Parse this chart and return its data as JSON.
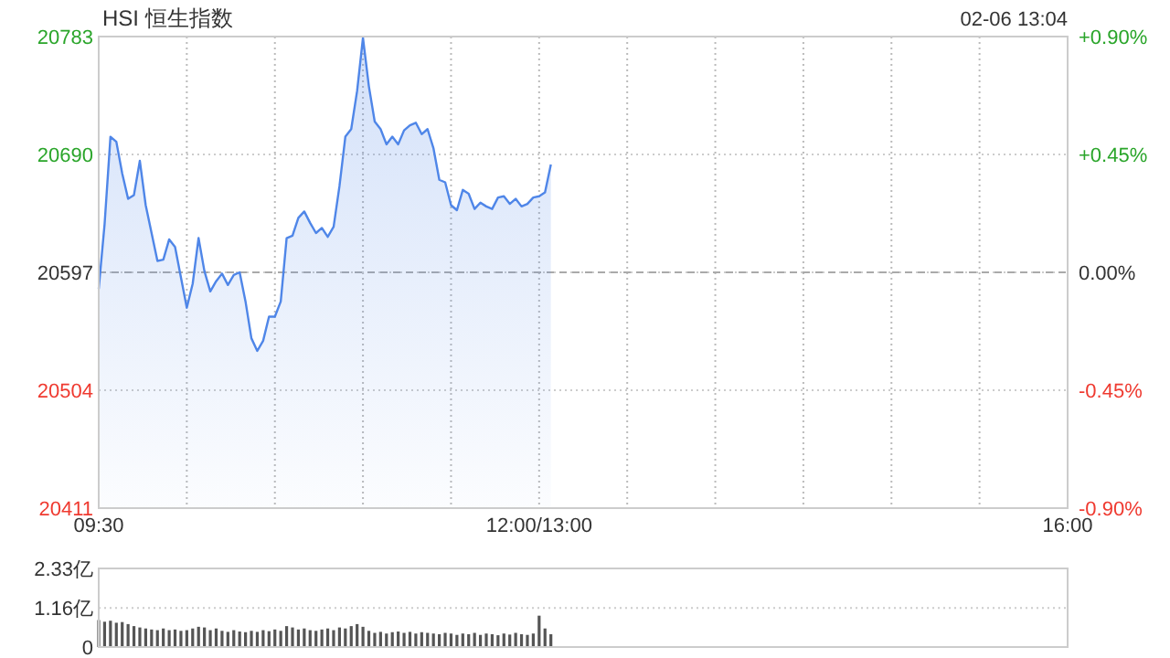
{
  "chart_data": [
    {
      "type": "area",
      "title": "HSI 恒生指数",
      "annotations": [
        "02-06 13:04"
      ],
      "categories": [
        "09:30",
        null,
        null,
        null,
        null,
        null,
        null,
        null,
        null,
        null,
        null,
        null,
        null,
        null,
        null,
        null,
        null,
        null,
        null,
        null,
        null,
        null,
        null,
        null,
        null,
        null,
        null,
        null,
        null,
        null,
        null,
        null,
        null,
        null,
        null,
        null,
        null,
        null,
        null,
        null,
        null,
        null,
        null,
        null,
        null,
        null,
        null,
        null,
        null,
        null,
        null,
        null,
        null,
        null,
        null,
        null,
        null,
        null,
        null,
        null,
        null,
        null,
        null,
        null,
        null,
        null,
        null,
        null,
        null,
        null,
        null,
        null,
        null,
        null,
        null,
        "12:00/13:00",
        null,
        null,
        null,
        null,
        null,
        null,
        null,
        null,
        null,
        null,
        null,
        null,
        null,
        null,
        null,
        null,
        null,
        null,
        null,
        null,
        null,
        null,
        null,
        null,
        null,
        null,
        null,
        null,
        null,
        null,
        null,
        null,
        null,
        null,
        null,
        null,
        null,
        null,
        null,
        null,
        null,
        null,
        null,
        null,
        null,
        null,
        null,
        null,
        null,
        null,
        null,
        null,
        null,
        null,
        null,
        null,
        null,
        null,
        null,
        null,
        null,
        null,
        null,
        null,
        null,
        null,
        null,
        null,
        null,
        null,
        null,
        null,
        null,
        null,
        null,
        null,
        null,
        null,
        null,
        null,
        null,
        null,
        null,
        null,
        null,
        null,
        null,
        null,
        null,
        "16:00"
      ],
      "ylim": [
        20411,
        20783
      ],
      "yticks": [
        20411,
        20504,
        20597,
        20690,
        20783
      ],
      "y2lim": [
        -0.9,
        0.9
      ],
      "y2ticks": [
        {
          "value": -0.9,
          "label": "-0.90%"
        },
        {
          "value": -0.45,
          "label": "-0.45%"
        },
        {
          "value": 0,
          "label": "0.00%"
        },
        {
          "value": 0.45,
          "label": "+0.45%"
        },
        {
          "value": 0.9,
          "label": "+0.90%"
        }
      ],
      "ref_lines": [
        {
          "axis": "y2",
          "value": 0,
          "line_style": "dashed",
          "color": "#aaaaaa"
        }
      ],
      "grid": true,
      "series": [
        {
          "color": "#4f86e8",
          "values": [
            20584,
            20635,
            20704,
            20700,
            20675,
            20655,
            20658,
            20685,
            20650,
            20628,
            20606,
            20607,
            20623,
            20617,
            20593,
            20569,
            20588,
            20624,
            20598,
            20582,
            20590,
            20596,
            20587,
            20595,
            20597,
            20574,
            20545,
            20535,
            20543,
            20562,
            20562,
            20574,
            20624,
            20626,
            20640,
            20645,
            20636,
            20628,
            20632,
            20625,
            20633,
            20665,
            20704,
            20710,
            20740,
            20782,
            20744,
            20716,
            20710,
            20698,
            20704,
            20698,
            20709,
            20713,
            20715,
            20706,
            20710,
            20695,
            20670,
            20668,
            20650,
            20646,
            20662,
            20659,
            20647,
            20652,
            20649,
            20647,
            20656,
            20657,
            20651,
            20655,
            20649,
            20651,
            20656,
            20657,
            20660,
            20682,
            null,
            null,
            null,
            null,
            null,
            null,
            null,
            null,
            null,
            null,
            null,
            null,
            null,
            null,
            null,
            null,
            null,
            null,
            null,
            null,
            null,
            null,
            null,
            null,
            null,
            null,
            null,
            null,
            null,
            null,
            null,
            null,
            null,
            null,
            null,
            null,
            null,
            null,
            null,
            null,
            null,
            null,
            null,
            null,
            null,
            null,
            null,
            null,
            null,
            null,
            null,
            null,
            null,
            null,
            null,
            null,
            null,
            null,
            null,
            null,
            null,
            null,
            null,
            null,
            null,
            null,
            null,
            null,
            null,
            null,
            null,
            null,
            null,
            null,
            null,
            null,
            null,
            null,
            null,
            null,
            null,
            null,
            null,
            null,
            null,
            null,
            null,
            null
          ]
        }
      ]
    },
    {
      "type": "bar",
      "ylim": [
        0,
        2.33
      ],
      "categories": [
        null,
        null,
        null,
        null,
        null,
        null,
        null,
        null,
        null,
        null,
        null,
        null,
        null,
        null,
        null,
        null,
        null,
        null,
        null,
        null,
        null,
        null,
        null,
        null,
        null,
        null,
        null,
        null,
        null,
        null,
        null,
        null,
        null,
        null,
        null,
        null,
        null,
        null,
        null,
        null,
        null,
        null,
        null,
        null,
        null,
        null,
        null,
        null,
        null,
        null,
        null,
        null,
        null,
        null,
        null,
        null,
        null,
        null,
        null,
        null,
        null,
        null,
        null,
        null,
        null,
        null,
        null,
        null,
        null,
        null,
        null,
        null,
        null,
        null,
        null,
        null,
        null,
        null,
        null,
        null,
        null,
        null,
        null,
        null,
        null,
        null,
        null,
        null,
        null,
        null,
        null,
        null,
        null,
        null,
        null,
        null,
        null,
        null,
        null,
        null,
        null,
        null,
        null,
        null,
        null,
        null,
        null,
        null,
        null,
        null,
        null,
        null,
        null,
        null,
        null,
        null,
        null,
        null,
        null,
        null,
        null,
        null,
        null,
        null,
        null,
        null,
        null,
        null,
        null,
        null,
        null,
        null,
        null,
        null,
        null,
        null,
        null,
        null,
        null,
        null,
        null,
        null,
        null,
        null,
        null,
        null,
        null,
        null,
        null,
        null,
        null,
        null,
        null,
        null,
        null,
        null,
        null,
        null,
        null,
        null,
        null,
        null,
        null,
        null,
        null,
        null
      ],
      "yticks": [
        0,
        {
          "value": 1.16,
          "label": "1.16亿"
        },
        {
          "value": 2.33,
          "label": "2.33亿"
        }
      ],
      "grid": "y",
      "tick_labels": "y",
      "series": [
        {
          "color": "#555555",
          "values": [
            0.8,
            0.75,
            0.78,
            0.72,
            0.74,
            0.68,
            0.62,
            0.58,
            0.55,
            0.52,
            0.5,
            0.55,
            0.5,
            0.52,
            0.48,
            0.5,
            0.55,
            0.6,
            0.58,
            0.5,
            0.55,
            0.48,
            0.45,
            0.5,
            0.46,
            0.44,
            0.48,
            0.45,
            0.5,
            0.47,
            0.52,
            0.48,
            0.62,
            0.58,
            0.52,
            0.55,
            0.5,
            0.48,
            0.52,
            0.55,
            0.5,
            0.58,
            0.55,
            0.62,
            0.68,
            0.6,
            0.48,
            0.42,
            0.45,
            0.4,
            0.44,
            0.46,
            0.42,
            0.45,
            0.4,
            0.44,
            0.42,
            0.4,
            0.38,
            0.42,
            0.4,
            0.36,
            0.4,
            0.38,
            0.42,
            0.36,
            0.4,
            0.38,
            0.35,
            0.4,
            0.37,
            0.42,
            0.38,
            0.36,
            0.4,
            0.93,
            0.55,
            0.38,
            null,
            null,
            null,
            null,
            null,
            null,
            null,
            null,
            null,
            null,
            null,
            null,
            null,
            null,
            null,
            null,
            null,
            null,
            null,
            null,
            null,
            null,
            null,
            null,
            null,
            null,
            null,
            null,
            null,
            null,
            null,
            null,
            null,
            null,
            null,
            null,
            null,
            null,
            null,
            null,
            null,
            null,
            null,
            null,
            null,
            null,
            null,
            null,
            null,
            null,
            null,
            null,
            null,
            null,
            null,
            null,
            null,
            null,
            null,
            null,
            null,
            null,
            null,
            null,
            null,
            null,
            null,
            null,
            null,
            null,
            null,
            null,
            null,
            null,
            null,
            null,
            null,
            null,
            null,
            null,
            null,
            null,
            null,
            null,
            null,
            null,
            null,
            null
          ]
        }
      ]
    }
  ]
}
